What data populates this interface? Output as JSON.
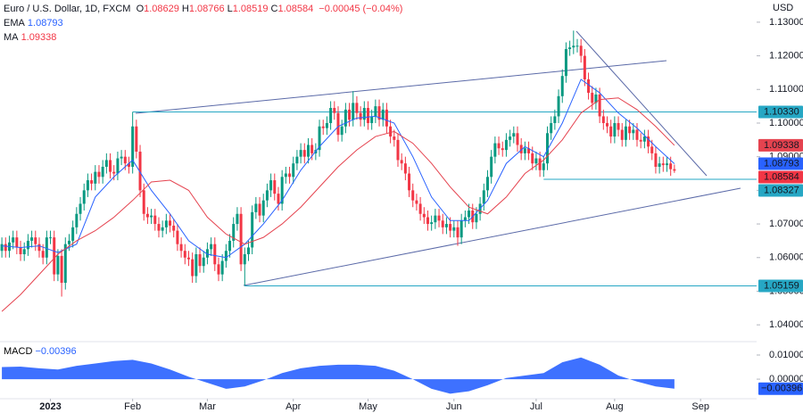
{
  "chart_data": {
    "type": "candlestick",
    "title": "Euro / U.S. Dollar, 1D, FXCM",
    "header": [
      {
        "key": "O",
        "value": "1.08629"
      },
      {
        "key": "H",
        "value": "1.08766"
      },
      {
        "key": "L",
        "value": "1.08519"
      },
      {
        "key": "C",
        "value": "1.08584"
      }
    ],
    "change": "−0.00045 (−0.04%)",
    "currency": "USD",
    "xlim": [
      -0.5,
      202
    ],
    "xticks": [
      {
        "value": 13,
        "label": "2023"
      },
      {
        "value": 35,
        "label": "Feb"
      },
      {
        "value": 55,
        "label": "Mar"
      },
      {
        "value": 78,
        "label": "Apr"
      },
      {
        "value": 98,
        "label": "May"
      },
      {
        "value": 121,
        "label": "Jun"
      },
      {
        "value": 143,
        "label": "Jul"
      },
      {
        "value": 164,
        "label": "Aug"
      },
      {
        "value": 187,
        "label": "Sep"
      }
    ],
    "ylim": [
      1.0358,
      1.1366
    ],
    "yticks": [
      {
        "value": 1.04,
        "label": "1.04000"
      },
      {
        "value": 1.05,
        "label": "1.05000"
      },
      {
        "value": 1.06,
        "label": "1.06000"
      },
      {
        "value": 1.07,
        "label": "1.07000"
      },
      {
        "value": 1.08,
        "label": "1.08000"
      },
      {
        "value": 1.09,
        "label": "1.09000"
      },
      {
        "value": 1.1,
        "label": "1.10000"
      },
      {
        "value": 1.11,
        "label": "1.11000"
      },
      {
        "value": 1.12,
        "label": "1.12000"
      },
      {
        "value": 1.13,
        "label": "1.13000"
      }
    ],
    "candles": {
      "up_color": "#089981",
      "down_color": "#f23645",
      "close_label": "1.08584",
      "open": [
        1.062,
        1.064,
        1.062,
        1.0645,
        1.066,
        1.063,
        1.061,
        1.0625,
        1.065,
        1.066,
        1.064,
        1.062,
        1.06,
        1.066,
        1.066,
        1.055,
        1.0605,
        1.0525,
        1.064,
        1.065,
        1.069,
        1.073,
        1.076,
        1.08,
        1.083,
        1.082,
        1.0855,
        1.084,
        1.087,
        1.089,
        1.0855,
        1.085,
        1.0895,
        1.09,
        1.088,
        1.087,
        1.099,
        1.0915,
        1.08,
        1.073,
        1.072,
        1.0725,
        1.07,
        1.068,
        1.069,
        1.071,
        1.0695,
        1.068,
        1.064,
        1.062,
        1.06,
        1.0595,
        1.0545,
        1.061,
        1.0575,
        1.06,
        1.0625,
        1.064,
        1.058,
        1.055,
        1.059,
        1.062,
        1.065,
        1.07,
        1.073,
        1.058,
        1.061,
        1.063,
        1.0735,
        1.076,
        1.0725,
        1.077,
        1.08,
        1.083,
        1.079,
        1.076,
        1.084,
        1.085,
        1.084,
        1.088,
        1.09,
        1.092,
        1.09,
        1.0935,
        1.091,
        1.092,
        1.099,
        1.0985,
        1.1,
        1.1045,
        1.103,
        1.0965,
        1.099,
        1.104,
        1.101,
        1.106,
        1.103,
        1.101,
        1.1045,
        1.1,
        1.102,
        1.105,
        1.101,
        1.104,
        1.099,
        1.096,
        1.095,
        1.089,
        1.088,
        1.085,
        1.08,
        1.077,
        1.076,
        1.073,
        1.072,
        1.07,
        1.0705,
        1.0725,
        1.071,
        1.069,
        1.07,
        1.068,
        1.069,
        1.066,
        1.071,
        1.072,
        1.074,
        1.0705,
        1.073,
        1.076,
        1.08,
        1.084,
        1.09,
        1.094,
        1.0925,
        1.092,
        1.095,
        1.096,
        1.097,
        1.0935,
        1.091,
        1.0925,
        1.091,
        1.088,
        1.0895,
        1.086,
        1.088,
        1.097,
        1.1,
        1.102,
        1.108,
        1.114,
        1.122,
        1.1225,
        1.123,
        1.123,
        1.12,
        1.113,
        1.109,
        1.106,
        1.1085,
        1.102,
        1.1,
        1.099,
        1.096,
        1.1,
        1.098,
        1.095,
        1.099,
        1.097,
        1.098,
        1.095,
        1.0945,
        1.096,
        1.093,
        1.091,
        1.087,
        1.088,
        1.0875,
        1.088,
        1.08629
      ],
      "high": [
        1.066,
        1.066,
        1.0665,
        1.068,
        1.068,
        1.065,
        1.0645,
        1.067,
        1.068,
        1.068,
        1.066,
        1.064,
        1.068,
        1.068,
        1.068,
        1.0625,
        1.0625,
        1.066,
        1.067,
        1.071,
        1.075,
        1.078,
        1.082,
        1.085,
        1.085,
        1.0875,
        1.0875,
        1.089,
        1.091,
        1.091,
        1.0875,
        1.0915,
        1.092,
        1.092,
        1.09,
        1.1033,
        1.101,
        1.0935,
        1.082,
        1.075,
        1.0745,
        1.0745,
        1.072,
        1.071,
        1.073,
        1.073,
        1.0715,
        1.07,
        1.066,
        1.064,
        1.062,
        1.0615,
        1.063,
        1.063,
        1.062,
        1.0645,
        1.066,
        1.066,
        1.06,
        1.061,
        1.064,
        1.067,
        1.072,
        1.075,
        1.075,
        1.063,
        1.065,
        1.0755,
        1.078,
        1.078,
        1.079,
        1.082,
        1.085,
        1.085,
        1.081,
        1.086,
        1.087,
        1.087,
        1.09,
        1.092,
        1.094,
        1.094,
        1.0955,
        1.0955,
        1.094,
        1.101,
        1.101,
        1.102,
        1.1065,
        1.1065,
        1.105,
        1.101,
        1.106,
        1.106,
        1.1095,
        1.108,
        1.105,
        1.1065,
        1.1065,
        1.104,
        1.107,
        1.107,
        1.106,
        1.106,
        1.101,
        1.098,
        1.097,
        1.091,
        1.09,
        1.087,
        1.082,
        1.079,
        1.078,
        1.075,
        1.074,
        1.0725,
        1.0745,
        1.0745,
        1.073,
        1.072,
        1.072,
        1.071,
        1.071,
        1.073,
        1.074,
        1.076,
        1.076,
        1.075,
        1.078,
        1.082,
        1.086,
        1.092,
        1.096,
        1.096,
        1.0945,
        1.097,
        1.098,
        1.099,
        1.099,
        1.0955,
        1.0945,
        1.0945,
        1.093,
        1.0915,
        1.0915,
        1.09,
        1.099,
        1.102,
        1.104,
        1.11,
        1.116,
        1.124,
        1.1245,
        1.1275,
        1.125,
        1.125,
        1.122,
        1.115,
        1.111,
        1.1105,
        1.1105,
        1.104,
        1.102,
        1.101,
        1.102,
        1.102,
        1.1,
        1.101,
        1.101,
        1.1,
        1.1,
        1.097,
        1.098,
        1.098,
        1.095,
        1.093,
        1.09,
        1.09,
        1.09,
        1.09,
        1.08766
      ],
      "low": [
        1.06,
        1.06,
        1.06,
        1.0625,
        1.061,
        1.059,
        1.059,
        1.0605,
        1.063,
        1.062,
        1.06,
        1.058,
        1.058,
        1.064,
        1.053,
        1.053,
        1.0484,
        1.0505,
        1.062,
        1.063,
        1.067,
        1.071,
        1.074,
        1.078,
        1.08,
        1.08,
        1.082,
        1.082,
        1.085,
        1.0835,
        1.083,
        1.083,
        1.0875,
        1.086,
        1.085,
        1.085,
        1.0895,
        1.078,
        1.071,
        1.07,
        1.07,
        1.068,
        1.066,
        1.066,
        1.067,
        1.0675,
        1.066,
        1.062,
        1.06,
        1.058,
        1.0575,
        1.0525,
        1.0525,
        1.0555,
        1.0555,
        1.058,
        1.0605,
        1.056,
        1.053,
        1.053,
        1.057,
        1.06,
        1.063,
        1.068,
        1.056,
        1.0516,
        1.059,
        1.061,
        1.0715,
        1.0705,
        1.0705,
        1.075,
        1.078,
        1.077,
        1.074,
        1.074,
        1.082,
        1.082,
        1.082,
        1.086,
        1.088,
        1.088,
        1.088,
        1.089,
        1.089,
        1.09,
        1.0965,
        1.0965,
        1.098,
        1.101,
        1.0945,
        1.0945,
        1.097,
        1.099,
        1.099,
        1.101,
        1.099,
        1.099,
        1.098,
        1.098,
        1.1,
        1.099,
        1.099,
        1.097,
        1.094,
        1.093,
        1.087,
        1.086,
        1.083,
        1.078,
        1.075,
        1.074,
        1.071,
        1.07,
        1.068,
        1.068,
        1.0685,
        1.069,
        1.067,
        1.067,
        1.066,
        1.066,
        1.0635,
        1.064,
        1.069,
        1.07,
        1.0685,
        1.0685,
        1.071,
        1.074,
        1.078,
        1.082,
        1.088,
        1.0905,
        1.09,
        1.09,
        1.093,
        1.094,
        1.0915,
        1.089,
        1.089,
        1.089,
        1.086,
        1.086,
        1.084,
        1.084,
        1.086,
        1.095,
        1.098,
        1.1,
        1.106,
        1.112,
        1.12,
        1.1205,
        1.121,
        1.118,
        1.111,
        1.107,
        1.104,
        1.104,
        1.1,
        1.098,
        1.097,
        1.094,
        1.094,
        1.096,
        1.093,
        1.093,
        1.095,
        1.095,
        1.093,
        1.0925,
        1.0925,
        1.091,
        1.089,
        1.085,
        1.085,
        1.0855,
        1.0855,
        1.0843,
        1.08519
      ],
      "close": [
        1.064,
        1.062,
        1.0645,
        1.066,
        1.063,
        1.061,
        1.0625,
        1.065,
        1.066,
        1.064,
        1.062,
        1.06,
        1.066,
        1.066,
        1.055,
        1.0605,
        1.0525,
        1.064,
        1.065,
        1.069,
        1.073,
        1.076,
        1.08,
        1.083,
        1.082,
        1.0855,
        1.084,
        1.087,
        1.089,
        1.0855,
        1.085,
        1.0895,
        1.09,
        1.088,
        1.087,
        1.099,
        1.0915,
        1.08,
        1.073,
        1.072,
        1.0725,
        1.07,
        1.068,
        1.069,
        1.071,
        1.0695,
        1.068,
        1.064,
        1.062,
        1.06,
        1.0595,
        1.0545,
        1.061,
        1.0575,
        1.06,
        1.0625,
        1.064,
        1.058,
        1.055,
        1.059,
        1.062,
        1.065,
        1.07,
        1.073,
        1.058,
        1.061,
        1.063,
        1.0735,
        1.076,
        1.0725,
        1.077,
        1.08,
        1.083,
        1.079,
        1.076,
        1.084,
        1.085,
        1.084,
        1.088,
        1.09,
        1.092,
        1.09,
        1.0935,
        1.091,
        1.092,
        1.099,
        1.0985,
        1.1,
        1.1045,
        1.103,
        1.0965,
        1.099,
        1.104,
        1.101,
        1.106,
        1.103,
        1.101,
        1.1045,
        1.1,
        1.102,
        1.105,
        1.101,
        1.104,
        1.099,
        1.096,
        1.095,
        1.089,
        1.088,
        1.085,
        1.08,
        1.077,
        1.076,
        1.073,
        1.072,
        1.07,
        1.0705,
        1.0725,
        1.071,
        1.069,
        1.07,
        1.068,
        1.069,
        1.066,
        1.071,
        1.072,
        1.074,
        1.0705,
        1.073,
        1.076,
        1.08,
        1.084,
        1.09,
        1.094,
        1.0925,
        1.092,
        1.095,
        1.096,
        1.097,
        1.0935,
        1.091,
        1.0925,
        1.091,
        1.088,
        1.0895,
        1.086,
        1.088,
        1.097,
        1.1,
        1.102,
        1.108,
        1.114,
        1.122,
        1.1225,
        1.123,
        1.123,
        1.12,
        1.113,
        1.109,
        1.106,
        1.1085,
        1.102,
        1.1,
        1.099,
        1.096,
        1.1,
        1.098,
        1.095,
        1.099,
        1.097,
        1.098,
        1.095,
        1.0945,
        1.096,
        1.093,
        1.091,
        1.087,
        1.088,
        1.0875,
        1.088,
        1.08629,
        1.08584
      ]
    },
    "overlays": [
      {
        "name": "EMA",
        "color": "#2962ff",
        "value_label": "1.08793",
        "x": [
          0,
          5,
          10,
          15,
          20,
          25,
          30,
          35,
          40,
          45,
          50,
          55,
          60,
          65,
          70,
          75,
          80,
          85,
          90,
          95,
          100,
          105,
          110,
          115,
          120,
          125,
          130,
          135,
          140,
          145,
          150,
          155,
          160,
          165,
          170,
          175,
          180
        ],
        "values": [
          1.0635,
          1.063,
          1.0635,
          1.0615,
          1.064,
          1.078,
          1.084,
          1.089,
          1.08,
          1.073,
          1.065,
          1.061,
          1.06,
          1.064,
          1.07,
          1.077,
          1.086,
          1.093,
          1.099,
          1.1015,
          1.102,
          1.1,
          1.09,
          1.078,
          1.071,
          1.071,
          1.077,
          1.088,
          1.093,
          1.09,
          1.1,
          1.113,
          1.109,
          1.103,
          1.0985,
          1.093,
          1.08793
        ]
      },
      {
        "name": "MA",
        "color": "#e5434f",
        "value_label": "1.09338",
        "x": [
          0,
          5,
          10,
          15,
          20,
          25,
          30,
          35,
          40,
          45,
          50,
          55,
          60,
          65,
          70,
          75,
          80,
          85,
          90,
          95,
          100,
          105,
          110,
          115,
          120,
          125,
          130,
          135,
          140,
          145,
          150,
          155,
          160,
          165,
          170,
          175,
          180
        ],
        "values": [
          1.044,
          1.049,
          1.055,
          1.061,
          1.065,
          1.068,
          1.072,
          1.077,
          1.0825,
          1.083,
          1.08,
          1.072,
          1.067,
          1.064,
          1.066,
          1.07,
          1.075,
          1.081,
          1.087,
          1.092,
          1.096,
          1.0975,
          1.094,
          1.088,
          1.081,
          1.075,
          1.073,
          1.078,
          1.085,
          1.089,
          1.095,
          1.103,
          1.107,
          1.1075,
          1.104,
          1.099,
          1.09338
        ]
      }
    ],
    "levels": [
      {
        "value": 1.1033,
        "label": "1.10330",
        "start": 35
      },
      {
        "value": 1.08327,
        "label": "1.08327",
        "start": 145
      },
      {
        "value": 1.05159,
        "label": "1.05159",
        "start": 65
      }
    ],
    "level_color": "#26a7c4",
    "macd": {
      "name": "MACD",
      "value_label": "−0.00396",
      "color": "#2962ff",
      "ylim": [
        -0.0081,
        0.0148
      ],
      "yticks": [
        {
          "value": 0.01,
          "label": "0.01000"
        },
        {
          "value": 0,
          "label": "0.00000"
        }
      ],
      "x": [
        0,
        5,
        10,
        15,
        20,
        25,
        30,
        35,
        40,
        45,
        50,
        55,
        60,
        65,
        70,
        75,
        80,
        85,
        90,
        95,
        100,
        105,
        110,
        115,
        120,
        125,
        130,
        135,
        140,
        145,
        150,
        155,
        160,
        165,
        170,
        175,
        180
      ],
      "values": [
        0.005,
        0.0052,
        0.0045,
        0.004,
        0.0055,
        0.0065,
        0.0075,
        0.008,
        0.0065,
        0.004,
        0.001,
        -0.0015,
        -0.004,
        -0.003,
        -0.0005,
        0.0025,
        0.0045,
        0.0055,
        0.006,
        0.006,
        0.0055,
        0.0035,
        0.0,
        -0.004,
        -0.006,
        -0.005,
        -0.0025,
        0.0005,
        0.0015,
        0.0025,
        0.007,
        0.009,
        0.006,
        0.0015,
        -0.001,
        -0.003,
        -0.00396
      ]
    }
  }
}
